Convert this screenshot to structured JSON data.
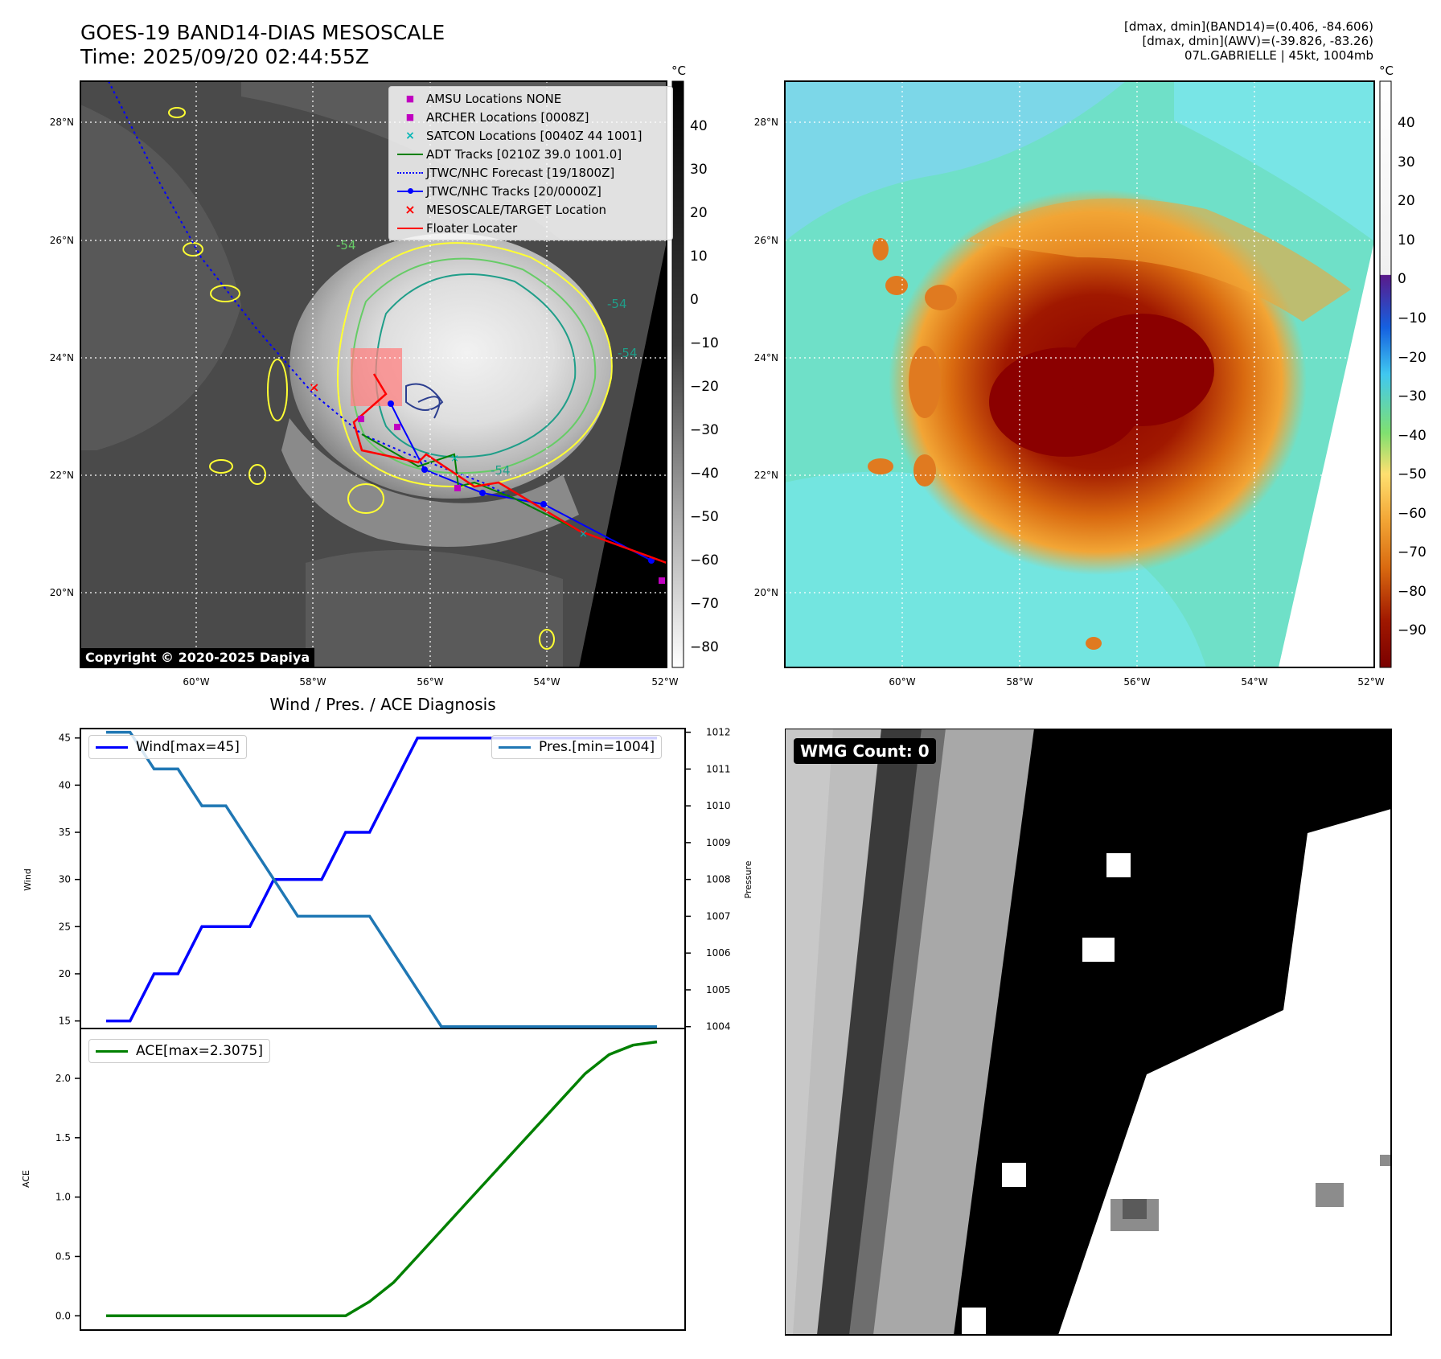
{
  "header": {
    "title": "GOES-19 BAND14-DIAS MESOSCALE",
    "time": "Time: 2025/09/20 02:44:55Z",
    "info_line1": "[dmax, dmin](BAND14)=(0.406, -84.606)",
    "info_line2": "[dmax, dmin](AWV)=(-39.826, -83.26)",
    "info_line3": "07L.GABRIELLE | 45kt, 1004mb"
  },
  "map_panel": {
    "lat_labels": [
      "28°N",
      "26°N",
      "24°N",
      "22°N",
      "20°N"
    ],
    "lon_labels": [
      "60°W",
      "58°W",
      "56°W",
      "54°W",
      "52°W"
    ],
    "copyright": "Copyright © 2020-2025 Dapiya",
    "contour_labels": [
      "-54",
      "-54",
      "-54",
      "-54"
    ],
    "legend": [
      {
        "label": "AMSU Locations NONE",
        "color": "#c000c0",
        "marker": "square"
      },
      {
        "label": "ARCHER Locations [0008Z]",
        "color": "#c000c0",
        "marker": "square"
      },
      {
        "label": "SATCON Locations [0040Z 44 1001]",
        "color": "#00b5b5",
        "marker": "x"
      },
      {
        "label": "ADT Tracks [0210Z 39.0 1001.0]",
        "color": "#008000",
        "marker": "line"
      },
      {
        "label": "JTWC/NHC Forecast [19/1800Z]",
        "color": "#0000ff",
        "marker": "dotted"
      },
      {
        "label": "JTWC/NHC Tracks [20/0000Z]",
        "color": "#0000ff",
        "marker": "line-dot"
      },
      {
        "label": "MESOSCALE/TARGET Location",
        "color": "#ff0000",
        "marker": "x"
      },
      {
        "label": "Floater Locater",
        "color": "#ff0000",
        "marker": "line"
      }
    ],
    "colorbar_unit": "°C",
    "colorbar_ticks": [
      "40",
      "30",
      "20",
      "10",
      "0",
      "−10",
      "−20",
      "−30",
      "−40",
      "−50",
      "−60",
      "−70",
      "−80"
    ]
  },
  "awv_panel": {
    "lat_labels": [
      "28°N",
      "26°N",
      "24°N",
      "22°N",
      "20°N"
    ],
    "lon_labels": [
      "60°W",
      "58°W",
      "56°W",
      "54°W",
      "52°W"
    ],
    "colorbar_unit": "°C",
    "colorbar_ticks": [
      "40",
      "30",
      "20",
      "10",
      "0",
      "−10",
      "−20",
      "−30",
      "−40",
      "−50",
      "−60",
      "−70",
      "−80",
      "−90"
    ]
  },
  "diagnosis": {
    "title": "Wind / Pres. / ACE Diagnosis",
    "wind_legend": "Wind[max=45]",
    "pres_legend": "Pres.[min=1004]",
    "ace_legend": "ACE[max=2.3075]",
    "wind_ylabel": "Wind",
    "pres_ylabel": "Pressure",
    "ace_ylabel": "ACE",
    "wind_ticks": [
      "45",
      "40",
      "35",
      "30",
      "25",
      "20",
      "15"
    ],
    "pres_ticks": [
      "1012",
      "1011",
      "1010",
      "1009",
      "1008",
      "1007",
      "1006",
      "1005",
      "1004"
    ],
    "ace_ticks": [
      "2.0",
      "1.5",
      "1.0",
      "0.5",
      "0.0"
    ]
  },
  "wmg_panel": {
    "label": "WMG Count: 0"
  },
  "chart_data": [
    {
      "type": "line",
      "title": "Wind / Pres. / ACE Diagnosis",
      "x": [
        0,
        1,
        2,
        3,
        4,
        5,
        6,
        7,
        8,
        9,
        10,
        11,
        12,
        13,
        14,
        15,
        16,
        17,
        18,
        19,
        20,
        21,
        22,
        23
      ],
      "series": [
        {
          "name": "Wind[max=45]",
          "axis": "left",
          "color": "#0000ff",
          "values": [
            15,
            15,
            20,
            20,
            25,
            25,
            25,
            30,
            30,
            30,
            35,
            35,
            40,
            45,
            45,
            45,
            45,
            45,
            45,
            45,
            45,
            45,
            45,
            45
          ]
        },
        {
          "name": "Pres.[min=1004]",
          "axis": "right",
          "color": "#1f77b4",
          "values": [
            1012,
            1012,
            1011,
            1011,
            1010,
            1010,
            1009,
            1008,
            1007,
            1007,
            1007,
            1007,
            1006,
            1005,
            1004,
            1004,
            1004,
            1004,
            1004,
            1004,
            1004,
            1004,
            1004,
            1004
          ]
        }
      ],
      "ylabel": "Wind",
      "y2label": "Pressure",
      "ylim": [
        14.2,
        46
      ],
      "y2lim": [
        1003.95,
        1012.1
      ]
    },
    {
      "type": "line",
      "x": [
        0,
        1,
        2,
        3,
        4,
        5,
        6,
        7,
        8,
        9,
        10,
        11,
        12,
        13,
        14,
        15,
        16,
        17,
        18,
        19,
        20,
        21,
        22,
        23
      ],
      "series": [
        {
          "name": "ACE[max=2.3075]",
          "color": "#008000",
          "values": [
            0,
            0,
            0,
            0,
            0,
            0,
            0,
            0,
            0,
            0,
            0,
            0.12,
            0.28,
            0.5,
            0.72,
            0.94,
            1.16,
            1.38,
            1.6,
            1.82,
            2.04,
            2.2,
            2.28,
            2.3075
          ]
        }
      ],
      "ylabel": "ACE",
      "ylim": [
        -0.12,
        2.42
      ]
    }
  ]
}
